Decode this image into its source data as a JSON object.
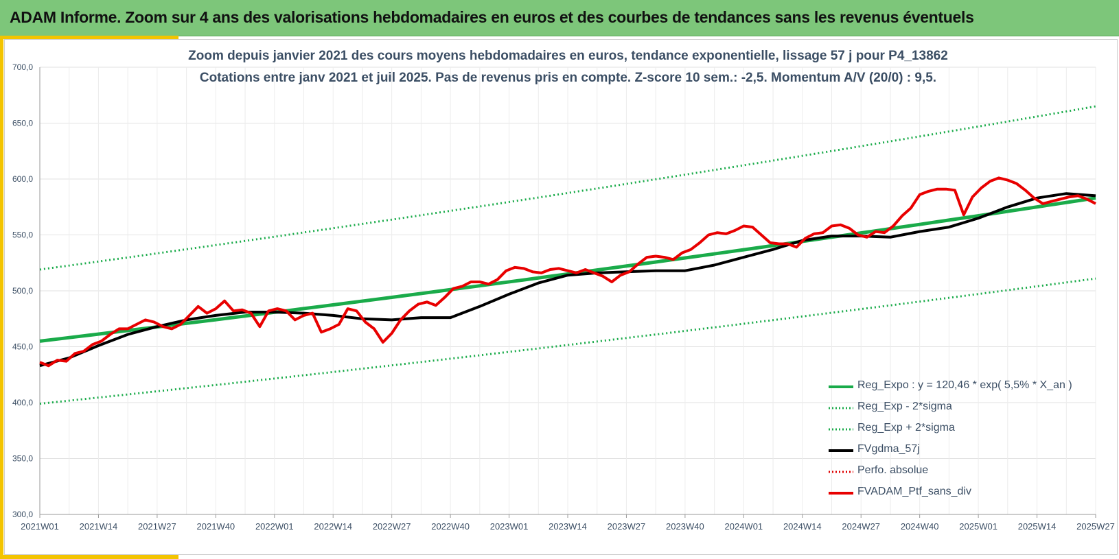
{
  "header": {
    "title": "ADAM Informe. Zoom sur 4 ans des valorisations hebdomadaires en euros et des courbes de tendances sans les revenus éventuels"
  },
  "colors": {
    "header_bg": "#7dc67a",
    "accent": "#f3c400",
    "trend": "#1aab4a",
    "sigma": "#1aab4a",
    "smooth": "#000000",
    "perf": "#e00000",
    "price": "#e80000",
    "text": "#3b4e64"
  },
  "chart_data": {
    "type": "line",
    "title": "Zoom depuis janvier 2021 des cours moyens hebdomadaires  en euros, tendance exponentielle, lissage 57 j pour P4_13862",
    "subtitle": "Cotations  entre janv 2021 et juil 2025. Pas de revenus pris en compte. Z-score 10 sem.: -2,5. Momentum A/V (20/0) : 9,5.",
    "x_labels": [
      "2021W01",
      "2021W14",
      "2021W27",
      "2021W40",
      "2022W01",
      "2022W14",
      "2022W27",
      "2022W40",
      "2023W01",
      "2023W14",
      "2023W27",
      "2023W40",
      "2024W01",
      "2024W14",
      "2024W27",
      "2024W40",
      "2025W01",
      "2025W14",
      "2025W27"
    ],
    "ylim": [
      300,
      700
    ],
    "y_ticks": [
      "300,0",
      "350,0",
      "400,0",
      "450,0",
      "500,0",
      "550,0",
      "600,0",
      "650,0",
      "700,0"
    ],
    "grid": true,
    "legend_position": "bottom-right",
    "legend": [
      {
        "label": "Reg_Expo : y = 120,46 * exp( 5,5% *  X_an )",
        "style": "solid-thick",
        "color": "#1aab4a"
      },
      {
        "label": "Reg_Exp - 2*sigma",
        "style": "dotted",
        "color": "#1aab4a"
      },
      {
        "label": "Reg_Exp + 2*sigma",
        "style": "dotted",
        "color": "#1aab4a"
      },
      {
        "label": "FVgdma_57j",
        "style": "solid-thick",
        "color": "#000000"
      },
      {
        "label": "Perfo. absolue",
        "style": "dotted",
        "color": "#e00000"
      },
      {
        "label": "FVADAM_Ptf_sans_div",
        "style": "solid-thick",
        "color": "#e80000"
      }
    ],
    "series": [
      {
        "name": "Reg_Expo : y = 120,46 * exp( 5,5% *  X_an )",
        "kind": "trend",
        "x": [
          0,
          18
        ],
        "y": [
          455,
          583
        ]
      },
      {
        "name": "Reg_Exp - 2*sigma",
        "kind": "lower",
        "x": [
          0,
          18
        ],
        "y": [
          399,
          511
        ]
      },
      {
        "name": "Reg_Exp + 2*sigma",
        "kind": "upper",
        "x": [
          0,
          18
        ],
        "y": [
          519,
          665
        ]
      },
      {
        "name": "FVgdma_57j",
        "kind": "smooth",
        "x": [
          0,
          0.5,
          1,
          1.5,
          2,
          2.5,
          3,
          3.5,
          4,
          4.5,
          5,
          5.5,
          6,
          6.5,
          7,
          7.5,
          8,
          8.5,
          9,
          9.5,
          10,
          10.5,
          11,
          11.5,
          12,
          12.5,
          13,
          13.5,
          14,
          14.5,
          15,
          15.5,
          16,
          16.5,
          17,
          17.5,
          18
        ],
        "y": [
          433,
          440,
          451,
          461,
          468,
          474,
          478,
          481,
          481,
          480,
          478,
          475,
          474,
          476,
          476,
          486,
          497,
          507,
          514,
          516,
          517,
          518,
          518,
          523,
          530,
          537,
          545,
          549,
          549,
          548,
          553,
          557,
          565,
          575,
          583,
          587,
          585
        ]
      },
      {
        "name": "FVADAM_Ptf_sans_div",
        "kind": "price",
        "x": [
          0,
          0.15,
          0.3,
          0.45,
          0.6,
          0.75,
          0.9,
          1.05,
          1.2,
          1.35,
          1.5,
          1.65,
          1.8,
          1.95,
          2.1,
          2.25,
          2.4,
          2.55,
          2.7,
          2.85,
          3.0,
          3.15,
          3.3,
          3.45,
          3.6,
          3.75,
          3.9,
          4.05,
          4.2,
          4.35,
          4.5,
          4.65,
          4.8,
          4.95,
          5.1,
          5.25,
          5.4,
          5.55,
          5.7,
          5.85,
          6.0,
          6.15,
          6.3,
          6.45,
          6.6,
          6.75,
          6.9,
          7.05,
          7.2,
          7.35,
          7.5,
          7.65,
          7.8,
          7.95,
          8.1,
          8.25,
          8.4,
          8.55,
          8.7,
          8.85,
          9.0,
          9.15,
          9.3,
          9.45,
          9.6,
          9.75,
          9.9,
          10.05,
          10.2,
          10.35,
          10.5,
          10.65,
          10.8,
          10.95,
          11.1,
          11.25,
          11.4,
          11.55,
          11.7,
          11.85,
          12.0,
          12.15,
          12.3,
          12.45,
          12.6,
          12.75,
          12.9,
          13.05,
          13.2,
          13.35,
          13.5,
          13.65,
          13.8,
          13.95,
          14.1,
          14.25,
          14.4,
          14.55,
          14.7,
          14.85,
          15.0,
          15.15,
          15.3,
          15.45,
          15.6,
          15.75,
          15.9,
          16.05,
          16.2,
          16.35,
          16.5,
          16.65,
          16.8,
          16.95,
          17.1,
          17.25,
          17.4,
          17.55,
          17.7,
          17.85,
          18.0
        ],
        "y": [
          436,
          433,
          438,
          437,
          444,
          446,
          452,
          455,
          461,
          466,
          466,
          470,
          474,
          472,
          468,
          466,
          470,
          478,
          486,
          480,
          484,
          491,
          482,
          483,
          480,
          468,
          482,
          484,
          482,
          474,
          478,
          480,
          463,
          466,
          470,
          484,
          482,
          472,
          466,
          454,
          462,
          474,
          482,
          488,
          490,
          487,
          494,
          502,
          504,
          508,
          508,
          506,
          510,
          518,
          521,
          520,
          517,
          516,
          519,
          520,
          518,
          516,
          519,
          516,
          513,
          508,
          514,
          517,
          524,
          530,
          531,
          530,
          528,
          534,
          537,
          543,
          550,
          552,
          551,
          554,
          558,
          557,
          550,
          543,
          542,
          542,
          539,
          547,
          551,
          552,
          558,
          559,
          556,
          550,
          548,
          553,
          552,
          558,
          567,
          574,
          586,
          589,
          591,
          591,
          590,
          568,
          584,
          592,
          598,
          601,
          599,
          596,
          590,
          583,
          578,
          580,
          582,
          584,
          585,
          582,
          578
        ]
      }
    ]
  }
}
